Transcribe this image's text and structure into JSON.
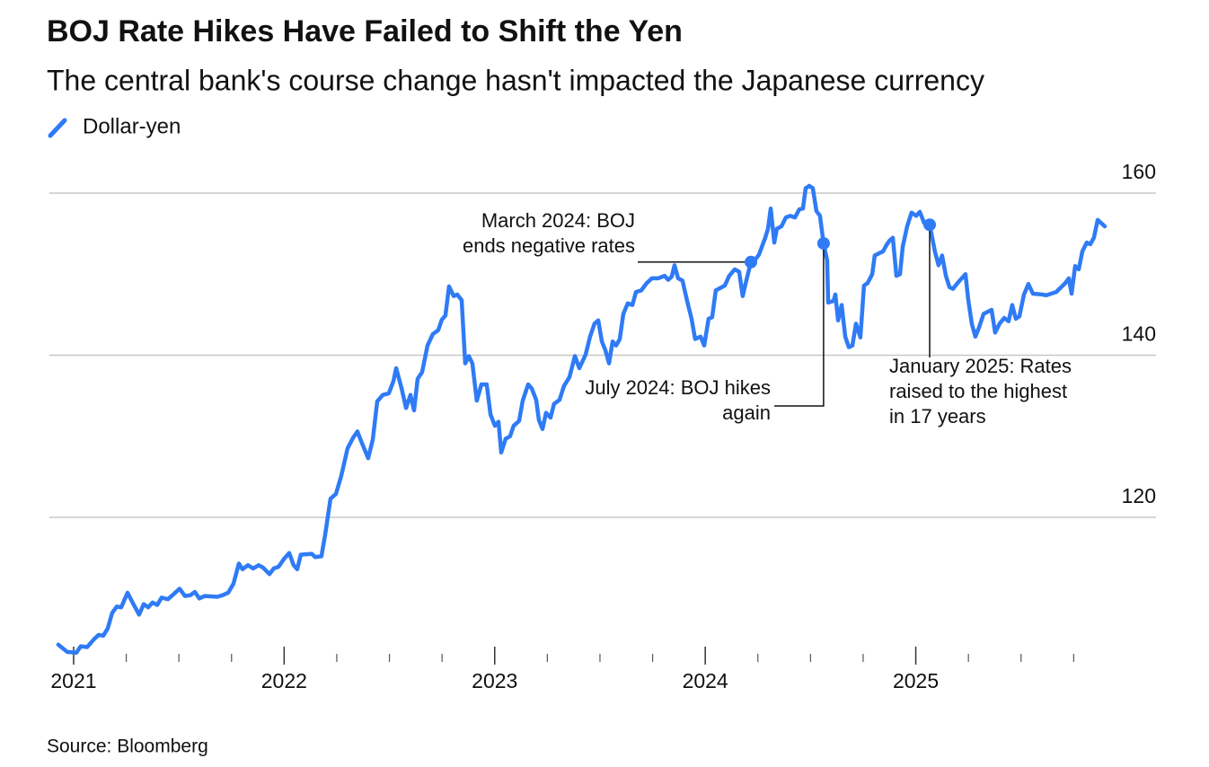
{
  "chart_data": {
    "type": "line",
    "title": "BOJ Rate Hikes Have Failed to Shift the Yen",
    "subtitle": "The central bank's course change hasn't impacted the Japanese currency",
    "source": "Source: Bloomberg",
    "xlim": [
      2020.885,
      2026.141
    ],
    "xticks": [
      2021,
      2022,
      2023,
      2024,
      2025
    ],
    "xminor_ticks": [
      2021.25,
      2021.5,
      2021.75,
      2022.25,
      2022.5,
      2022.75,
      2023.25,
      2023.5,
      2023.75,
      2024.25,
      2024.5,
      2024.75,
      2025.25,
      2025.5,
      2025.75
    ],
    "ylim": [
      102.5,
      162
    ],
    "yticks": [
      120,
      140,
      160
    ],
    "grid": true,
    "legend": "top-left",
    "x": [
      2020.927,
      2020.97,
      2021.013,
      2021.034,
      2021.064,
      2021.098,
      2021.119,
      2021.141,
      2021.162,
      2021.183,
      2021.205,
      2021.226,
      2021.256,
      2021.282,
      2021.311,
      2021.333,
      2021.354,
      2021.375,
      2021.397,
      2021.418,
      2021.448,
      2021.474,
      2021.503,
      2021.529,
      2021.555,
      2021.576,
      2021.597,
      2021.623,
      2021.683,
      2021.708,
      2021.734,
      2021.759,
      2021.785,
      2021.802,
      2021.828,
      2021.853,
      2021.879,
      2021.9,
      2021.93,
      2021.951,
      2021.973,
      2022.0,
      2022.024,
      2022.045,
      2022.062,
      2022.079,
      2022.131,
      2022.148,
      2022.177,
      2022.195,
      2022.22,
      2022.246,
      2022.271,
      2022.301,
      2022.327,
      2022.348,
      2022.369,
      2022.399,
      2022.421,
      2022.442,
      2022.468,
      2022.497,
      2022.519,
      2022.532,
      2022.557,
      2022.579,
      2022.6,
      2022.617,
      2022.634,
      2022.655,
      2022.681,
      2022.706,
      2022.732,
      2022.749,
      2022.766,
      2022.783,
      2022.805,
      2022.822,
      2022.843,
      2022.86,
      2022.877,
      2022.894,
      2022.915,
      2022.937,
      2022.962,
      2022.98,
      2023.001,
      2023.018,
      2023.031,
      2023.052,
      2023.073,
      2023.09,
      2023.116,
      2023.133,
      2023.159,
      2023.176,
      2023.197,
      2023.21,
      2023.227,
      2023.244,
      2023.265,
      2023.282,
      2023.308,
      2023.329,
      2023.355,
      2023.381,
      2023.402,
      2023.432,
      2023.453,
      2023.474,
      2023.492,
      2023.509,
      2023.526,
      2023.543,
      2023.56,
      2023.577,
      2023.594,
      2023.611,
      2023.632,
      2023.654,
      2023.671,
      2023.696,
      2023.722,
      2023.747,
      2023.777,
      2023.807,
      2023.824,
      2023.841,
      2023.854,
      2023.871,
      2023.892,
      2023.914,
      2023.935,
      2023.952,
      2023.978,
      2023.995,
      2024.016,
      2024.033,
      2024.05,
      2024.072,
      2024.093,
      2024.114,
      2024.14,
      2024.161,
      2024.178,
      2024.195,
      2024.217,
      2024.234,
      2024.255,
      2024.285,
      2024.298,
      2024.311,
      2024.328,
      2024.34,
      2024.362,
      2024.383,
      2024.404,
      2024.426,
      2024.447,
      2024.464,
      2024.477,
      2024.494,
      2024.511,
      2024.528,
      2024.545,
      2024.562,
      2024.579,
      2024.584,
      2024.609,
      2024.618,
      2024.631,
      2024.648,
      2024.665,
      2024.682,
      2024.699,
      2024.716,
      2024.737,
      2024.754,
      2024.771,
      2024.793,
      2024.805,
      2024.827,
      2024.844,
      2024.861,
      2024.874,
      2024.891,
      2024.908,
      2024.925,
      2024.938,
      2024.959,
      2024.98,
      2025.002,
      2025.019,
      2025.04,
      2025.066,
      2025.091,
      2025.108,
      2025.125,
      2025.143,
      2025.16,
      2025.177,
      2025.198,
      2025.236,
      2025.249,
      2025.266,
      2025.283,
      2025.3,
      2025.322,
      2025.36,
      2025.377,
      2025.398,
      2025.42,
      2025.441,
      2025.458,
      2025.475,
      2025.492,
      2025.514,
      2025.535,
      2025.556,
      2025.599,
      2025.62,
      2025.667,
      2025.71,
      2025.727,
      2025.74,
      2025.757,
      2025.774,
      2025.791,
      2025.812,
      2025.829,
      2025.846,
      2025.864,
      2025.881,
      2025.898
    ],
    "series": [
      {
        "name": "Dollar-yen",
        "color": "#2f7bf5",
        "values": [
          104.3,
          103.4,
          103.3,
          104.1,
          104.0,
          105.0,
          105.5,
          105.4,
          106.3,
          108.2,
          109.0,
          108.9,
          110.7,
          109.4,
          108.0,
          109.3,
          108.9,
          109.5,
          109.2,
          110.1,
          109.9,
          110.5,
          111.2,
          110.3,
          110.4,
          110.8,
          110.0,
          110.3,
          110.2,
          110.4,
          110.7,
          111.8,
          114.3,
          113.6,
          114.1,
          113.7,
          114.1,
          113.8,
          113.0,
          113.7,
          113.9,
          114.9,
          115.6,
          114.1,
          113.6,
          115.4,
          115.5,
          115.1,
          115.2,
          117.9,
          122.3,
          122.9,
          125.1,
          128.5,
          129.8,
          130.6,
          129.2,
          127.3,
          129.6,
          134.3,
          135.1,
          135.3,
          136.8,
          138.4,
          136.0,
          133.5,
          135.1,
          133.2,
          137.1,
          137.9,
          141.2,
          142.6,
          143.1,
          144.4,
          144.9,
          148.5,
          147.3,
          147.5,
          146.8,
          139.0,
          139.9,
          139.0,
          134.4,
          136.4,
          136.4,
          132.7,
          131.3,
          131.8,
          128.0,
          129.7,
          130.0,
          131.3,
          131.9,
          134.4,
          136.4,
          135.9,
          134.5,
          132.0,
          130.9,
          132.9,
          132.3,
          134.0,
          134.5,
          136.2,
          137.3,
          139.9,
          138.4,
          140.1,
          142.3,
          143.9,
          144.3,
          141.7,
          140.6,
          139.0,
          141.7,
          141.2,
          142.0,
          145.1,
          146.4,
          146.2,
          147.8,
          148.0,
          148.9,
          149.5,
          149.5,
          149.8,
          149.3,
          149.7,
          151.1,
          149.5,
          149.2,
          146.7,
          144.5,
          142.0,
          142.3,
          141.2,
          144.5,
          144.7,
          148.0,
          148.3,
          148.6,
          149.8,
          150.6,
          150.3,
          147.3,
          149.2,
          151.5,
          151.7,
          152.4,
          154.5,
          155.6,
          158.1,
          153.9,
          155.6,
          155.9,
          157.0,
          157.2,
          157.0,
          158.0,
          158.1,
          160.6,
          160.9,
          160.6,
          157.8,
          157.2,
          153.8,
          151.7,
          146.5,
          146.7,
          147.5,
          144.3,
          146.2,
          142.3,
          141.0,
          141.2,
          143.9,
          142.2,
          148.6,
          148.9,
          150.0,
          152.3,
          152.6,
          152.8,
          153.6,
          154.1,
          154.5,
          149.8,
          150.0,
          153.4,
          155.9,
          157.6,
          157.2,
          157.7,
          156.3,
          156.1,
          152.8,
          151.1,
          152.3,
          149.8,
          148.4,
          148.2,
          148.9,
          150.0,
          146.9,
          143.9,
          142.3,
          143.4,
          145.1,
          145.6,
          142.8,
          143.9,
          144.6,
          144.2,
          146.2,
          144.5,
          144.8,
          147.5,
          148.8,
          147.6,
          147.5,
          147.4,
          147.8,
          148.9,
          149.5,
          147.6,
          151.0,
          150.6,
          152.8,
          153.9,
          153.7,
          154.5,
          156.7,
          156.3,
          155.9
        ]
      }
    ],
    "annotations": [
      {
        "lines": [
          "March 2024: BOJ",
          "ends negative rates"
        ],
        "x": 2024.217,
        "y": 151.5
      },
      {
        "lines": [
          "July 2024: BOJ hikes",
          "again"
        ],
        "x": 2024.562,
        "y": 153.8
      },
      {
        "lines": [
          "January 2025: Rates",
          "raised to the highest",
          "in 17 years"
        ],
        "x": 2025.066,
        "y": 156.1
      }
    ]
  }
}
